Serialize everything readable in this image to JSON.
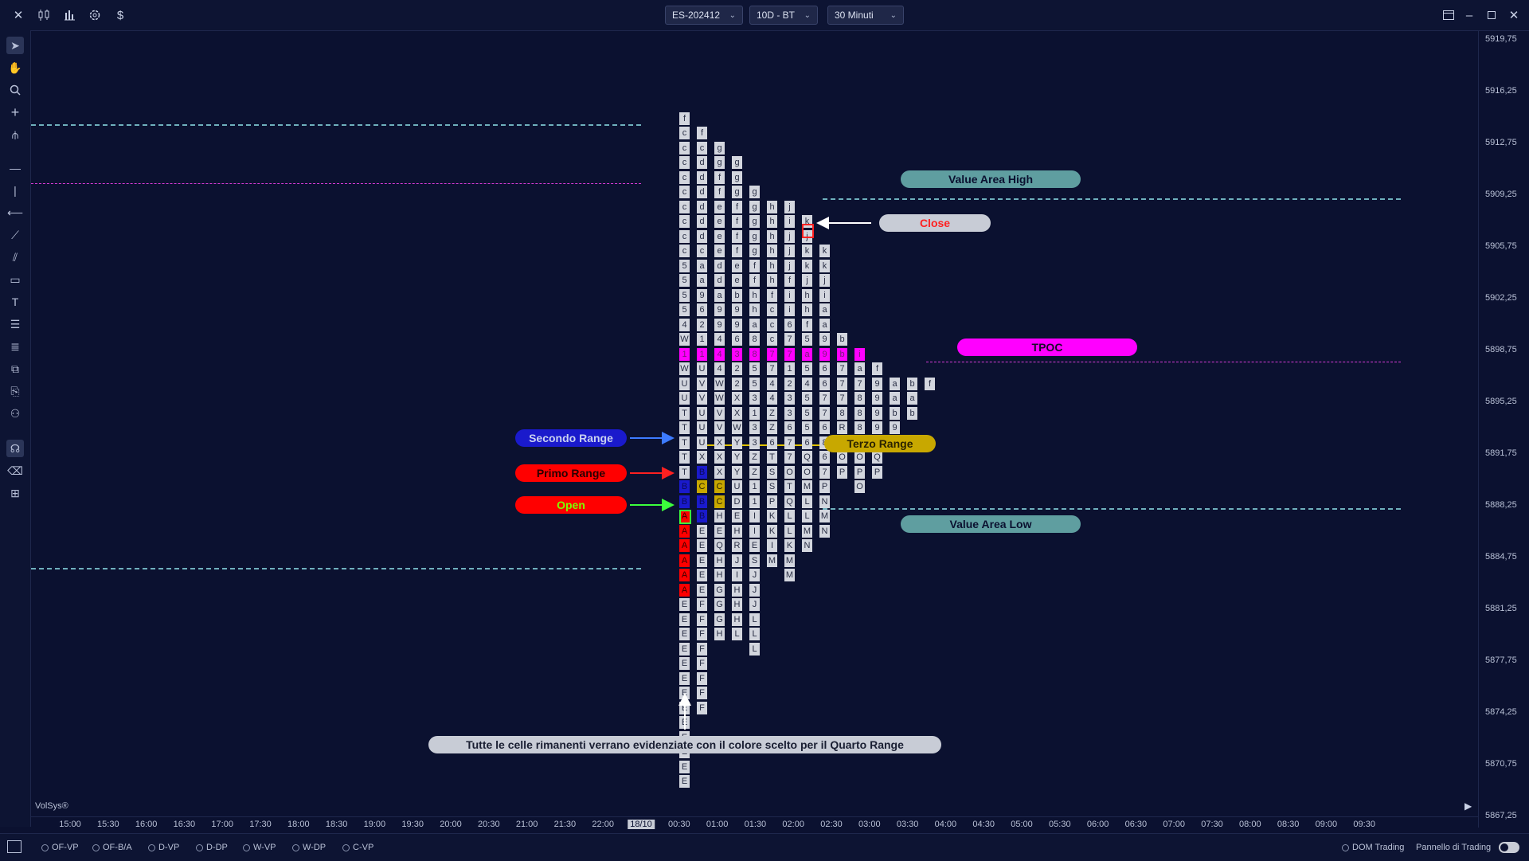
{
  "toolbar": {
    "symbol": "ES-202412",
    "period": "10D - BT",
    "timeframe": "30 Minuti",
    "dollar_label": "$"
  },
  "price_axis": [
    "5919,75",
    "5916,25",
    "5912,75",
    "5909,25",
    "5905,75",
    "5902,25",
    "5898,75",
    "5895,25",
    "5891,75",
    "5888,25",
    "5884,75",
    "5881,25",
    "5877,75",
    "5874,25",
    "5870,75",
    "5867,25"
  ],
  "time_axis": [
    "15:00",
    "15:30",
    "16:00",
    "16:30",
    "17:00",
    "17:30",
    "18:00",
    "18:30",
    "19:00",
    "19:30",
    "20:00",
    "20:30",
    "21:00",
    "21:30",
    "22:00",
    "18/10",
    "00:30",
    "01:00",
    "01:30",
    "02:00",
    "02:30",
    "03:00",
    "03:30",
    "04:00",
    "04:30",
    "05:00",
    "05:30",
    "06:00",
    "06:30",
    "07:00",
    "07:30",
    "08:00",
    "08:30",
    "09:00",
    "09:30"
  ],
  "watermark": "VolSys®",
  "annotations": {
    "value_area_high": "Value Area High",
    "close": "Close",
    "tpoc": "TPOC",
    "secondo_range": "Secondo Range",
    "terzo_range": "Terzo Range",
    "primo_range": "Primo Range",
    "open": "Open",
    "value_area_low": "Value Area Low",
    "note": "Tutte le celle rimanenti verrano evidenziate con il colore scelto per il Quarto Range"
  },
  "bottom_options": [
    "OF-VP",
    "OF-B/A",
    "D-VP",
    "D-DP",
    "W-VP",
    "W-DP",
    "C-VP"
  ],
  "bottom_right": {
    "dom": "DOM Trading",
    "panel": "Pannello di Trading"
  },
  "colors": {
    "background": "#0b1130",
    "tpoc": "#ff00ff",
    "value_area": "#5f9ea0",
    "primo_range": "#ff0000",
    "secondo_range": "#1a1acc",
    "terzo_range": "#c8a800",
    "open": "#ff0000",
    "open_text": "#7cff00",
    "close_text": "#ff2020"
  },
  "tpo_profile": {
    "columns": [
      "fccccccccc55554W1WUUTTTTTBBAAAAAAEEEEEEEEEEEEE",
      "fcddddddcaa96211UVVUUUXBCBBEEEEEFFFFFFFF",
      "ggffeeeedda99444WWVVXXXCCHEQHHGGGH",
      "gggffffeeb996322XXWYYYUDEHRJIHHHL",
      "gggggffhha88553133ZZ11IIESJJJLLL",
      "hhhhhhfccc7744ZZ6TSSPKKIM",
      "jijjjfii6771233677OTQLLKMM",
      "kjkkjhhf5a545556QOMLLMN",
      "kkjiaa9966776867PNMN",
      "bb7778RQOP",
      "ia78886OPO",
      "f9999NQP",
      "aab9",
      "bab",
      "f"
    ],
    "starts": [
      1,
      2,
      3,
      4,
      6,
      7,
      7,
      8,
      10,
      16,
      17,
      18,
      19,
      19,
      19
    ],
    "tpoc_index": 17
  }
}
